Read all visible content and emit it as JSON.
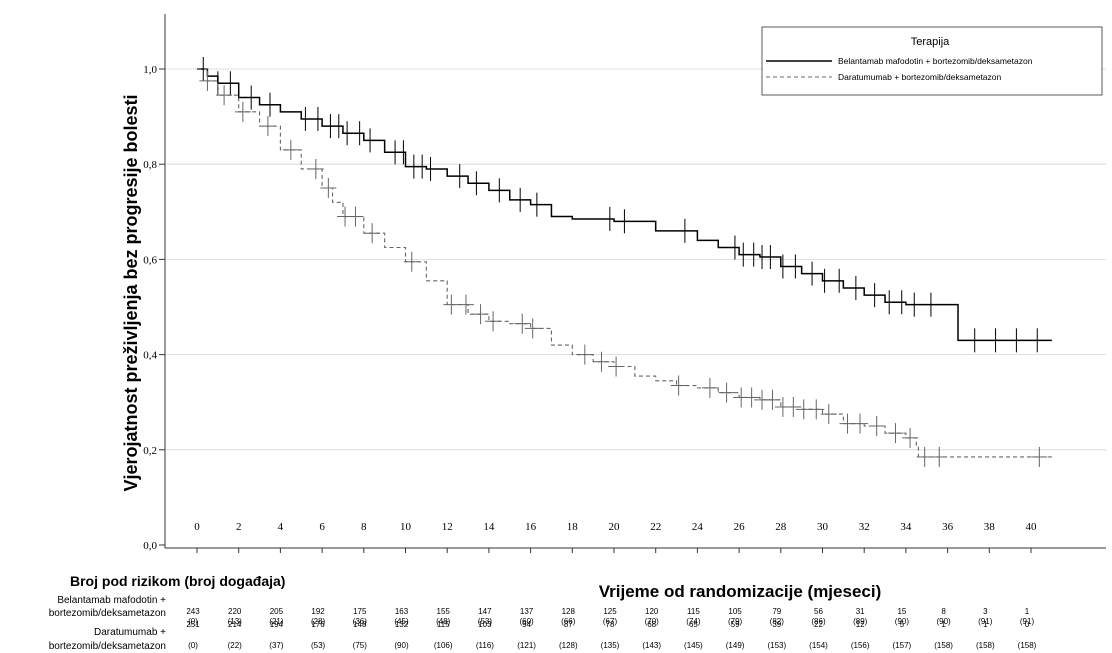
{
  "chart_data": {
    "type": "line",
    "title": "",
    "xlabel": "Vrijeme od randomizacije (mjeseci)",
    "ylabel": "Vjerojatnost preživljenja bez progresije bolesti",
    "xlim": [
      0,
      42
    ],
    "ylim": [
      0,
      1.05
    ],
    "x_ticks": [
      0,
      2,
      4,
      6,
      8,
      10,
      12,
      14,
      16,
      18,
      20,
      22,
      24,
      26,
      28,
      30,
      32,
      34,
      36,
      38,
      40
    ],
    "y_ticks": [
      0.0,
      0.2,
      0.4,
      0.6,
      0.8,
      1.0
    ],
    "y_tick_labels": [
      "0,0",
      "0,2",
      "0,4",
      "0,6",
      "0,8",
      "1,0"
    ],
    "gridlines": true,
    "legend": {
      "title": "Terapija",
      "position": "top-right",
      "entries": [
        "Belantamab mafodotin + bortezomib/deksametazon",
        "Daratumumab + bortezomib/deksametazon"
      ]
    },
    "series": [
      {
        "name": "Belantamab mafodotin + bortezomib/deksametazon",
        "style": "solid",
        "color": "#000000",
        "points": [
          [
            0,
            1.0
          ],
          [
            0.5,
            0.985
          ],
          [
            1,
            0.97
          ],
          [
            2,
            0.94
          ],
          [
            3,
            0.925
          ],
          [
            4,
            0.91
          ],
          [
            5,
            0.895
          ],
          [
            6,
            0.88
          ],
          [
            7,
            0.865
          ],
          [
            8,
            0.85
          ],
          [
            9,
            0.825
          ],
          [
            10,
            0.795
          ],
          [
            11,
            0.79
          ],
          [
            12,
            0.775
          ],
          [
            13,
            0.76
          ],
          [
            14,
            0.745
          ],
          [
            15,
            0.725
          ],
          [
            16,
            0.715
          ],
          [
            17,
            0.69
          ],
          [
            18,
            0.685
          ],
          [
            20,
            0.68
          ],
          [
            22,
            0.66
          ],
          [
            24,
            0.64
          ],
          [
            25,
            0.625
          ],
          [
            26,
            0.61
          ],
          [
            27,
            0.605
          ],
          [
            28,
            0.585
          ],
          [
            29,
            0.57
          ],
          [
            30,
            0.555
          ],
          [
            31,
            0.54
          ],
          [
            32,
            0.525
          ],
          [
            33,
            0.51
          ],
          [
            34,
            0.505
          ],
          [
            36.5,
            0.505
          ],
          [
            36.5,
            0.43
          ],
          [
            41,
            0.43
          ]
        ],
        "censor_x": [
          0.3,
          1,
          1.6,
          2.6,
          3.5,
          5.2,
          5.8,
          6.4,
          6.8,
          7.2,
          7.8,
          8.3,
          9.5,
          9.9,
          10.4,
          10.8,
          11.2,
          12.6,
          13.4,
          14.5,
          15.5,
          16.3,
          19.8,
          20.5,
          23.4,
          25.8,
          26.2,
          26.7,
          27.1,
          27.5,
          28.1,
          28.7,
          29.5,
          30.1,
          30.8,
          31.6,
          32.5,
          33.2,
          33.8,
          34.4,
          35.2,
          37.3,
          38.3,
          39.3,
          40.3
        ]
      },
      {
        "name": "Daratumumab + bortezomib/deksametazon",
        "style": "dashed",
        "color": "#666666",
        "points": [
          [
            0,
            1.0
          ],
          [
            0.5,
            0.975
          ],
          [
            1,
            0.945
          ],
          [
            2,
            0.91
          ],
          [
            3,
            0.88
          ],
          [
            4,
            0.83
          ],
          [
            5,
            0.79
          ],
          [
            6,
            0.75
          ],
          [
            6.5,
            0.72
          ],
          [
            7,
            0.69
          ],
          [
            8,
            0.655
          ],
          [
            9,
            0.625
          ],
          [
            10,
            0.595
          ],
          [
            11,
            0.555
          ],
          [
            12,
            0.505
          ],
          [
            13,
            0.485
          ],
          [
            14,
            0.47
          ],
          [
            15,
            0.465
          ],
          [
            16,
            0.455
          ],
          [
            17,
            0.42
          ],
          [
            18,
            0.4
          ],
          [
            19,
            0.385
          ],
          [
            20,
            0.375
          ],
          [
            21,
            0.355
          ],
          [
            22,
            0.345
          ],
          [
            23,
            0.335
          ],
          [
            24,
            0.33
          ],
          [
            25,
            0.32
          ],
          [
            26,
            0.31
          ],
          [
            27,
            0.305
          ],
          [
            28,
            0.29
          ],
          [
            29,
            0.285
          ],
          [
            30,
            0.275
          ],
          [
            31,
            0.255
          ],
          [
            32,
            0.25
          ],
          [
            33,
            0.235
          ],
          [
            34,
            0.225
          ],
          [
            34.5,
            0.21
          ],
          [
            34.6,
            0.185
          ],
          [
            41,
            0.185
          ]
        ],
        "censor_x": [
          0.5,
          1.3,
          2.2,
          3.4,
          4.5,
          5.7,
          6.3,
          7.1,
          7.6,
          8.4,
          10.3,
          12.2,
          12.9,
          13.6,
          14.2,
          15.6,
          16.1,
          18.6,
          19.4,
          20.1,
          23.1,
          24.6,
          25.4,
          26.1,
          26.6,
          27.1,
          27.6,
          28.1,
          28.6,
          29.1,
          29.7,
          30.3,
          31.2,
          31.8,
          32.6,
          33.5,
          34.2,
          34.9,
          35.6,
          40.4
        ]
      }
    ]
  },
  "risk_table": {
    "title": "Broj pod rizikom (broj događaja)",
    "groups": [
      {
        "label_line1": "Belantamab mafodotin +",
        "label_line2": "bortezomib/deksametazon",
        "at_risk": [
          "243",
          "220",
          "205",
          "192",
          "175",
          "163",
          "155",
          "147",
          "137",
          "128",
          "125",
          "120",
          "115",
          "105",
          "79",
          "56",
          "31",
          "15",
          "8",
          "3",
          "1"
        ],
        "events": [
          "(0)",
          "(13)",
          "(21)",
          "(28)",
          "(36)",
          "(45)",
          "(48)",
          "(53)",
          "(60)",
          "(66)",
          "(67)",
          "(70)",
          "(74)",
          "(79)",
          "(82)",
          "(86)",
          "(89)",
          "(90)",
          "(90)",
          "(91)",
          "(91)"
        ]
      },
      {
        "label_line1": "Daratumumab +",
        "label_line2": "bortezomib/deksametazon",
        "at_risk": [
          "251",
          "214",
          "194",
          "176",
          "148",
          "132",
          "115",
          "103",
          "94",
          "87",
          "78",
          "68",
          "65",
          "59",
          "39",
          "22",
          "12",
          "5",
          "1",
          "1",
          "0"
        ],
        "events": [
          "(0)",
          "(22)",
          "(37)",
          "(53)",
          "(75)",
          "(90)",
          "(106)",
          "(116)",
          "(121)",
          "(128)",
          "(135)",
          "(143)",
          "(145)",
          "(149)",
          "(153)",
          "(154)",
          "(156)",
          "(157)",
          "(158)",
          "(158)",
          "(158)"
        ]
      }
    ]
  }
}
